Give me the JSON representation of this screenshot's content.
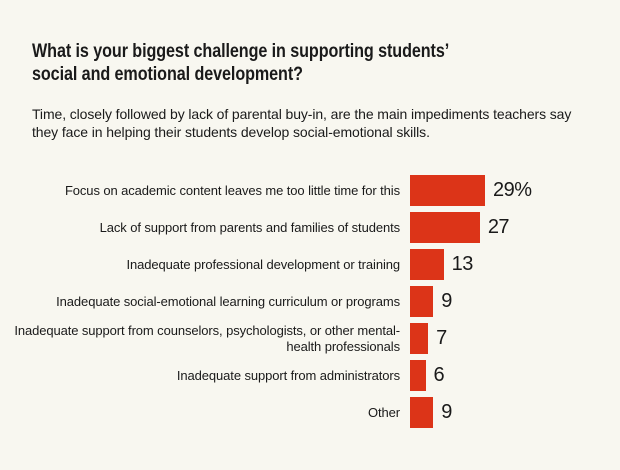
{
  "background_color": "#f8f7f0",
  "text_color": "#1a1a1a",
  "chart_data": {
    "type": "bar",
    "orientation": "horizontal",
    "title": "What is your biggest challenge in supporting students’ social and emotional development?",
    "subtitle": "Time, closely followed by lack of parental buy-in, are the main impediments teachers say they face in helping their students develop social-emotional skills.",
    "categories": [
      "Focus on academic content leaves me too little time for this",
      "Lack of support from parents and families of students",
      "Inadequate professional development or training",
      "Inadequate social-emotional learning curriculum or programs",
      "Inadequate support from counselors, psychologists, or other mental-health professionals",
      "Inadequate support from administrators",
      "Other"
    ],
    "values": [
      29,
      27,
      13,
      9,
      7,
      6,
      9
    ],
    "value_labels": [
      "29%",
      "27",
      "13",
      "9",
      "7",
      "6",
      "9"
    ],
    "unit": "percent of teachers",
    "xlim": [
      0,
      30
    ],
    "bar_color": "#dc3418",
    "grid": false,
    "legend": false
  }
}
